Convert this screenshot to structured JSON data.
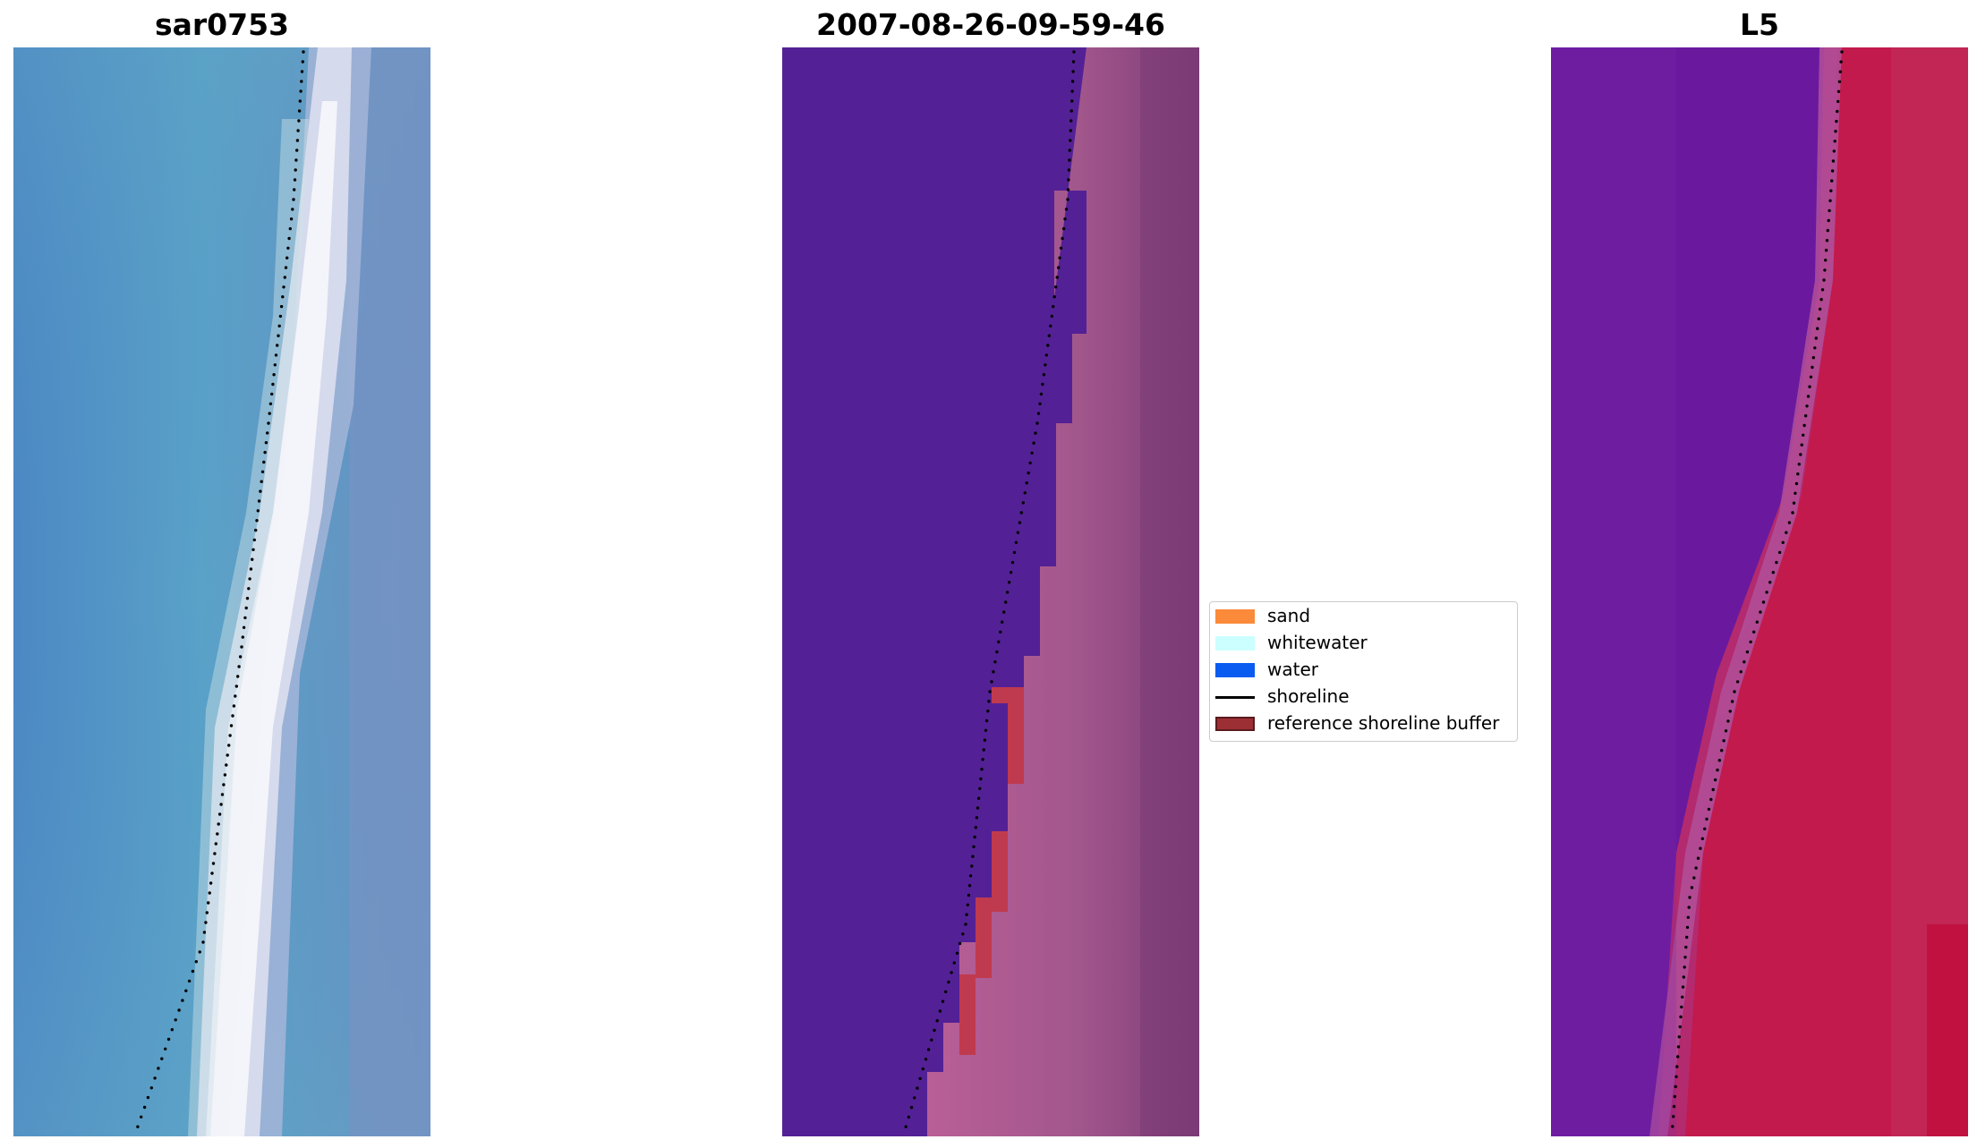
{
  "figure": {
    "panels": [
      {
        "id": "rgb",
        "title": "sar0753"
      },
      {
        "id": "classified",
        "title": "2007-08-26-09-59-46"
      },
      {
        "id": "index",
        "title": "L5"
      }
    ]
  },
  "legend": {
    "items": [
      {
        "label": "sand",
        "kind": "patch",
        "color": "#fb8a3a"
      },
      {
        "label": "whitewater",
        "kind": "patch",
        "color": "#ccffff"
      },
      {
        "label": "water",
        "kind": "patch",
        "color": "#0a5cf0"
      },
      {
        "label": "shoreline",
        "kind": "line",
        "color": "#000000"
      },
      {
        "label": "reference shoreline buffer",
        "kind": "patch",
        "color": "#9b2f33"
      }
    ]
  },
  "colors": {
    "water_class": "#532195",
    "land_class": "#b55c94",
    "land_dark": "#7e3a77",
    "buffer": "#c03a4f",
    "shoreline_dots": "#000000"
  }
}
